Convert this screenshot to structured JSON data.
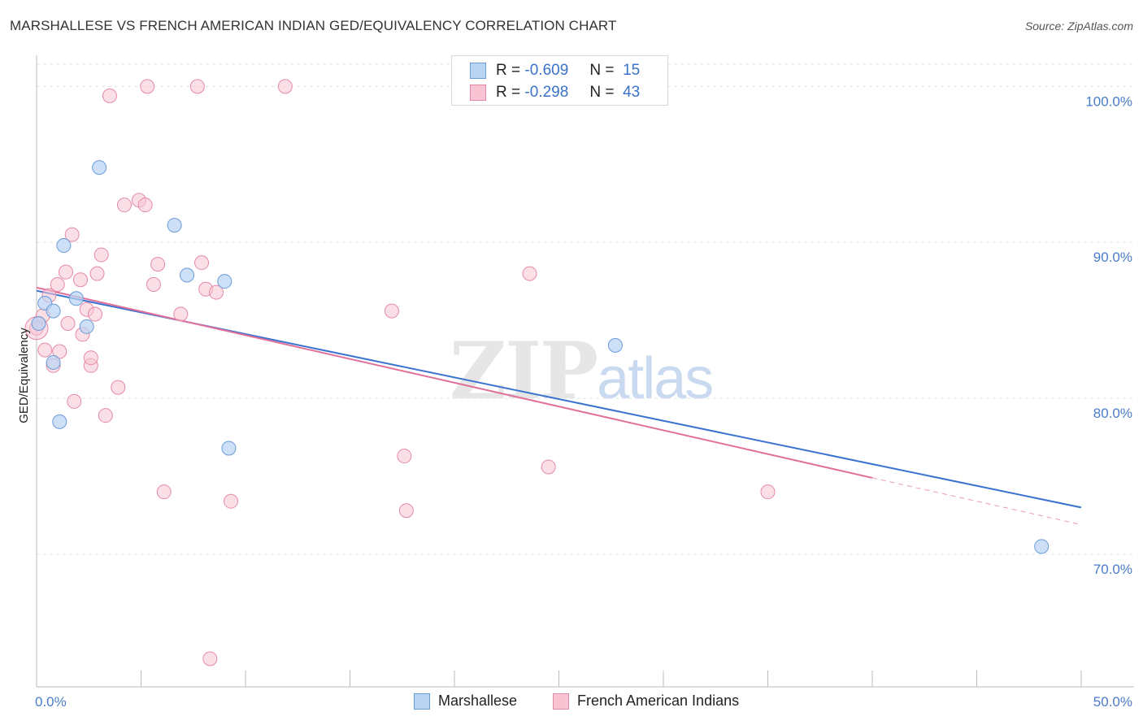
{
  "header": {
    "title": "MARSHALLESE VS FRENCH AMERICAN INDIAN GED/EQUIVALENCY CORRELATION CHART",
    "source": "Source: ZipAtlas.com"
  },
  "watermark": {
    "zip": "ZIP",
    "atlas": "atlas"
  },
  "legend": {
    "rows": [
      {
        "r_label": "R =",
        "r_value": "-0.609",
        "n_label": "N =",
        "n_value": "15"
      },
      {
        "r_label": "R =",
        "r_value": "-0.298",
        "n_label": "N =",
        "n_value": "43"
      }
    ]
  },
  "bottom_legend": {
    "series1": "Marshallese",
    "series2": "French American Indians"
  },
  "colors": {
    "series1_fill": "#b9d3f3",
    "series1_stroke": "#6a9bd8",
    "series1_line": "#3a72d0",
    "series2_fill": "#f8c4d4",
    "series2_stroke": "#e58aa6",
    "series2_line": "#e0709a"
  },
  "chart_data": {
    "type": "scatter",
    "title": "MARSHALLESE VS FRENCH AMERICAN INDIAN GED/EQUIVALENCY CORRELATION CHART",
    "xlabel": "",
    "ylabel": "GED/Equivalency",
    "xlim": [
      0,
      50
    ],
    "ylim": [
      61.5,
      102
    ],
    "x_tick_labels": {
      "min": "0.0%",
      "max": "50.0%"
    },
    "y_ticks": [
      70,
      80,
      90,
      100
    ],
    "y_tick_labels": [
      "70.0%",
      "80.0%",
      "90.0%",
      "100.0%"
    ],
    "grid": true,
    "legend_position": "top-center",
    "series": [
      {
        "name": "Marshallese",
        "R": -0.609,
        "N": 15,
        "points": [
          [
            0.1,
            84.8
          ],
          [
            0.4,
            86.1
          ],
          [
            0.8,
            85.6
          ],
          [
            0.8,
            82.3
          ],
          [
            1.1,
            78.5
          ],
          [
            1.3,
            89.8
          ],
          [
            1.9,
            86.4
          ],
          [
            2.4,
            84.6
          ],
          [
            3.0,
            94.8
          ],
          [
            6.6,
            91.1
          ],
          [
            7.2,
            87.9
          ],
          [
            9.0,
            87.5
          ],
          [
            9.2,
            76.8
          ],
          [
            27.7,
            83.4
          ],
          [
            48.1,
            70.5
          ]
        ],
        "trend": {
          "x": [
            0,
            50
          ],
          "y": [
            86.9,
            73.0
          ]
        }
      },
      {
        "name": "French American Indians",
        "R": -0.298,
        "N": 43,
        "points": [
          [
            0.0,
            84.5
          ],
          [
            0.3,
            85.3
          ],
          [
            0.4,
            83.1
          ],
          [
            0.6,
            86.6
          ],
          [
            0.8,
            82.1
          ],
          [
            1.0,
            87.3
          ],
          [
            1.1,
            83.0
          ],
          [
            1.4,
            88.1
          ],
          [
            1.5,
            84.8
          ],
          [
            1.7,
            90.5
          ],
          [
            1.8,
            79.8
          ],
          [
            2.1,
            87.6
          ],
          [
            2.2,
            84.1
          ],
          [
            2.4,
            85.7
          ],
          [
            2.6,
            82.1
          ],
          [
            2.6,
            82.6
          ],
          [
            2.8,
            85.4
          ],
          [
            2.9,
            88.0
          ],
          [
            3.1,
            89.2
          ],
          [
            3.3,
            78.9
          ],
          [
            3.5,
            99.4
          ],
          [
            3.9,
            80.7
          ],
          [
            4.2,
            92.4
          ],
          [
            4.9,
            92.7
          ],
          [
            5.2,
            92.4
          ],
          [
            5.3,
            100.0
          ],
          [
            5.6,
            87.3
          ],
          [
            5.8,
            88.6
          ],
          [
            6.1,
            74.0
          ],
          [
            6.9,
            85.4
          ],
          [
            7.7,
            100.0
          ],
          [
            7.9,
            88.7
          ],
          [
            8.1,
            87.0
          ],
          [
            8.6,
            86.8
          ],
          [
            8.3,
            63.3
          ],
          [
            9.3,
            73.4
          ],
          [
            11.9,
            100.0
          ],
          [
            17.0,
            85.6
          ],
          [
            17.6,
            76.3
          ],
          [
            17.7,
            72.8
          ],
          [
            23.6,
            88.0
          ],
          [
            24.5,
            75.6
          ],
          [
            35.0,
            74.0
          ]
        ],
        "trend": {
          "x": [
            0,
            40
          ],
          "y": [
            87.1,
            74.9
          ]
        },
        "trend_extrapolated": {
          "x": [
            40,
            50
          ],
          "y": [
            74.9,
            71.9
          ]
        }
      }
    ]
  }
}
